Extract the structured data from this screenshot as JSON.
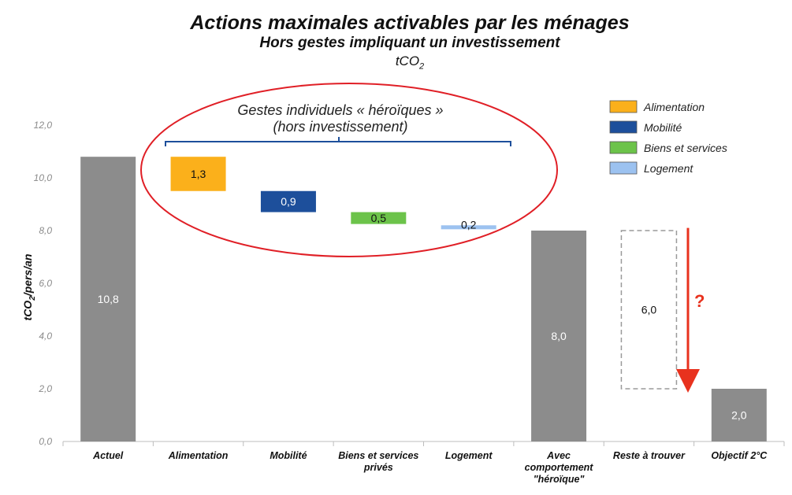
{
  "chart_data": {
    "type": "bar",
    "title": "Actions maximales activables par les ménages",
    "subtitle": "Hors gestes impliquant un investissement",
    "unit": "tCO2",
    "ylabel": "tCO2/pers/an",
    "ylim": [
      0,
      12
    ],
    "yticks": [
      "0,0",
      "2,0",
      "4,0",
      "6,0",
      "8,0",
      "10,0",
      "12,0"
    ],
    "categories": [
      "Actuel",
      "Alimentation",
      "Mobilité",
      "Biens et services privés",
      "Logement",
      "Avec comportement \"héroïque\"",
      "Reste à trouver",
      "Objectif 2°C"
    ],
    "bars": [
      {
        "category": "Actuel",
        "kind": "total",
        "bottom": 0,
        "top": 10.8,
        "label": "10,8",
        "color": "#8c8c8c"
      },
      {
        "category": "Alimentation",
        "kind": "step",
        "bottom": 9.5,
        "top": 10.8,
        "label": "1,3",
        "color": "#fbb01b"
      },
      {
        "category": "Mobilité",
        "kind": "step",
        "bottom": 8.7,
        "top": 9.5,
        "label": "0,9",
        "color": "#1d4f9b"
      },
      {
        "category": "Biens et services privés",
        "kind": "step",
        "bottom": 8.25,
        "top": 8.7,
        "label": "0,5",
        "color": "#6cc34a"
      },
      {
        "category": "Logement",
        "kind": "step",
        "bottom": 8.05,
        "top": 8.2,
        "label": "0,2",
        "color": "#9cc2f0"
      },
      {
        "category": "Avec comportement \"héroïque\"",
        "kind": "total",
        "bottom": 0,
        "top": 8.0,
        "label": "8,0",
        "color": "#8c8c8c"
      },
      {
        "category": "Reste à trouver",
        "kind": "dashed",
        "bottom": 2.0,
        "top": 8.0,
        "label": "6,0",
        "color": "#9a9a9a"
      },
      {
        "category": "Objectif 2°C",
        "kind": "total",
        "bottom": 0,
        "top": 2.0,
        "label": "2,0",
        "color": "#8c8c8c"
      }
    ],
    "legend": {
      "position": "top-right",
      "entries": [
        {
          "name": "Alimentation",
          "color": "#fbb01b"
        },
        {
          "name": "Mobilité",
          "color": "#1d4f9b"
        },
        {
          "name": "Biens et services",
          "color": "#6cc34a"
        },
        {
          "name": "Logement",
          "color": "#9cc2f0"
        }
      ]
    },
    "annotations": {
      "ellipse_line1": "Gestes individuels « héroïques »",
      "ellipse_line2": "(hors investissement)",
      "question_mark": "?",
      "ellipse_color": "#e01f26",
      "arrow_color": "#e8321e",
      "bracket_color": "#1d4f9b"
    },
    "grid": false
  }
}
